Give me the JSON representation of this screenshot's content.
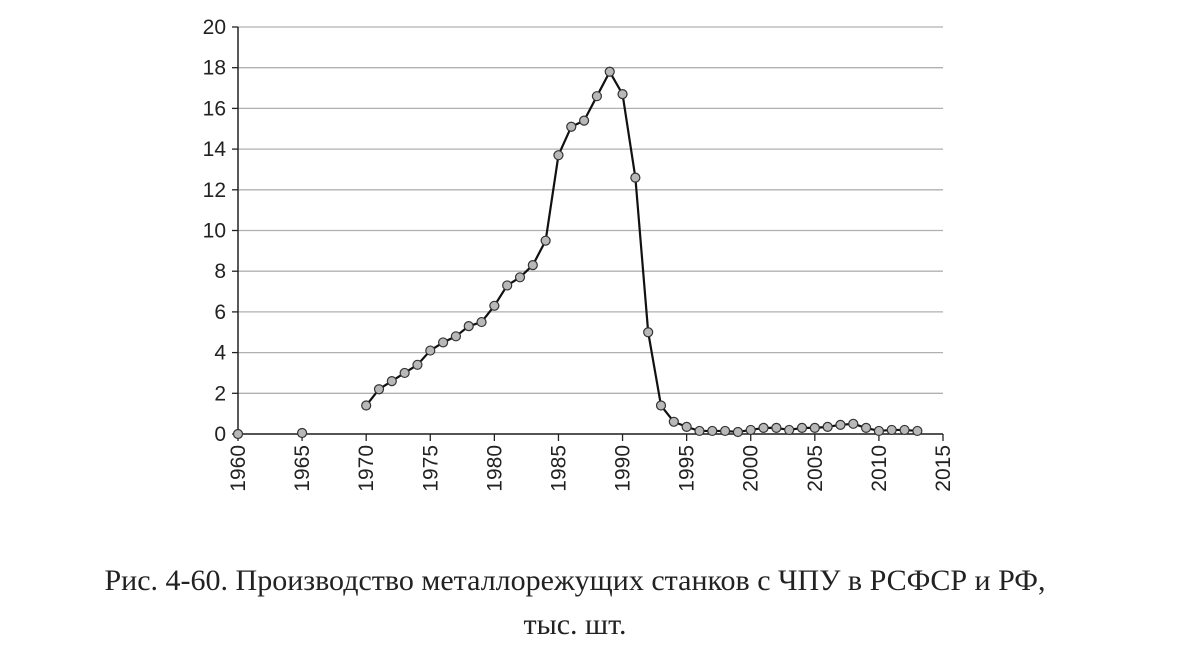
{
  "chart_data": {
    "type": "line",
    "caption": [
      "Рис. 4-60. Производство металлорежущих станков с ЧПУ в РСФСР и РФ,",
      "тыс. шт."
    ],
    "x": [
      1960,
      1961,
      1962,
      1963,
      1964,
      1965,
      1966,
      1967,
      1968,
      1969,
      1970,
      1971,
      1972,
      1973,
      1974,
      1975,
      1976,
      1977,
      1978,
      1979,
      1980,
      1981,
      1982,
      1983,
      1984,
      1985,
      1986,
      1987,
      1988,
      1989,
      1990,
      1991,
      1992,
      1993,
      1994,
      1995,
      1996,
      1997,
      1998,
      1999,
      2000,
      2001,
      2002,
      2003,
      2004,
      2005,
      2006,
      2007,
      2008,
      2009,
      2010,
      2011,
      2012,
      2013
    ],
    "series": [
      {
        "color": "#111111",
        "marker_color": "#b8b8b8",
        "values": [
          0,
          null,
          null,
          null,
          null,
          0.05,
          null,
          null,
          null,
          null,
          1.4,
          2.2,
          2.6,
          3.0,
          3.4,
          4.1,
          4.5,
          4.8,
          5.3,
          5.5,
          6.3,
          7.3,
          7.7,
          8.3,
          9.5,
          13.7,
          15.1,
          15.4,
          16.6,
          17.8,
          16.7,
          12.6,
          5.0,
          1.4,
          0.6,
          0.35,
          0.15,
          0.15,
          0.15,
          0.1,
          0.2,
          0.3,
          0.3,
          0.2,
          0.3,
          0.3,
          0.35,
          0.45,
          0.5,
          0.3,
          0.15,
          0.2,
          0.2,
          0.15
        ]
      }
    ],
    "xlim": [
      1960,
      2015
    ],
    "xticks": [
      1960,
      1965,
      1970,
      1975,
      1980,
      1985,
      1990,
      1995,
      2000,
      2005,
      2010,
      2015
    ],
    "ylim": [
      0,
      20
    ],
    "yticks": [
      0,
      2,
      4,
      6,
      8,
      10,
      12,
      14,
      16,
      18,
      20
    ],
    "grid": true
  }
}
